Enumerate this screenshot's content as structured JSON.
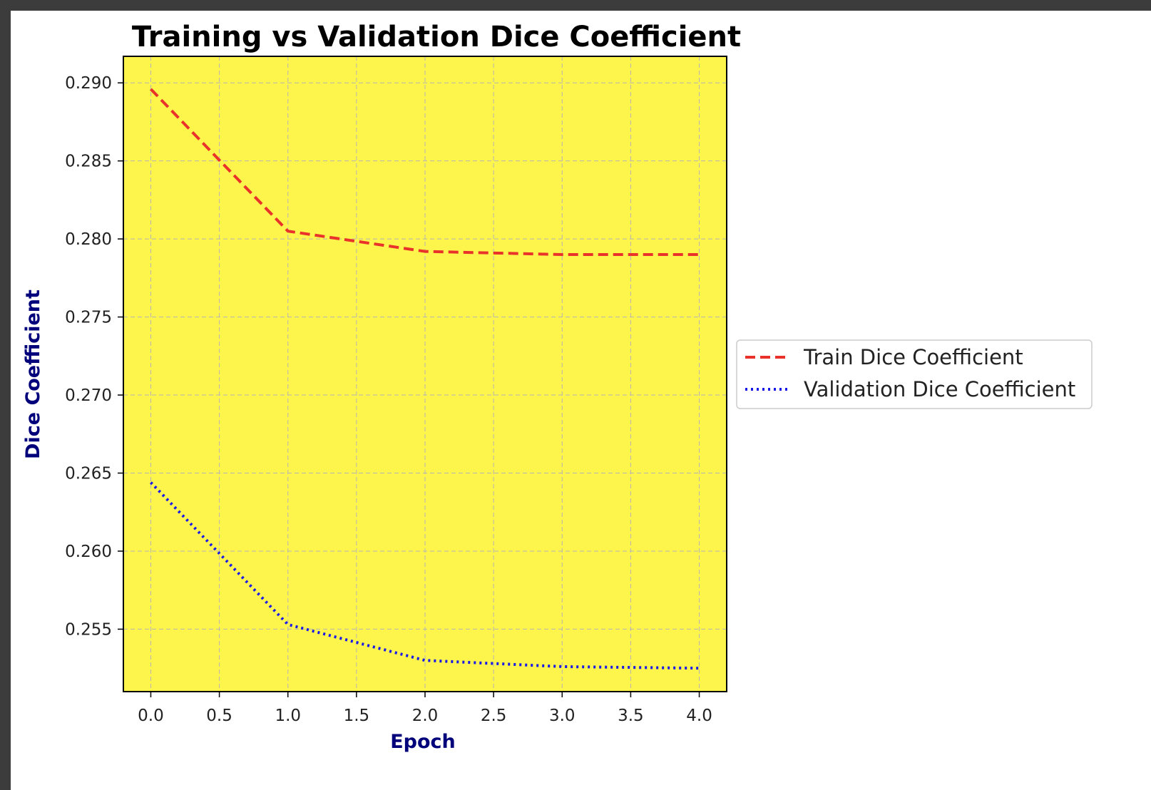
{
  "chart_data": {
    "type": "line",
    "title": "Training vs Validation Dice Coefficient",
    "xlabel": "Epoch",
    "ylabel": "Dice Coefficient",
    "x": [
      0,
      1,
      2,
      3,
      4
    ],
    "xlim": [
      -0.2,
      4.2
    ],
    "ylim": [
      0.251,
      0.2917
    ],
    "xticks": [
      0.0,
      0.5,
      1.0,
      1.5,
      2.0,
      2.5,
      3.0,
      3.5,
      4.0
    ],
    "xtick_labels": [
      "0.0",
      "0.5",
      "1.0",
      "1.5",
      "2.0",
      "2.5",
      "3.0",
      "3.5",
      "4.0"
    ],
    "yticks": [
      0.255,
      0.26,
      0.265,
      0.27,
      0.275,
      0.28,
      0.285,
      0.29
    ],
    "ytick_labels": [
      "0.255",
      "0.260",
      "0.265",
      "0.270",
      "0.275",
      "0.280",
      "0.285",
      "0.290"
    ],
    "grid": true,
    "legend_position": "center-right outside",
    "plot_background": "#fdf54b",
    "series": [
      {
        "name": "Train Dice Coefficient",
        "values": [
          0.2896,
          0.2805,
          0.2792,
          0.279,
          0.279
        ],
        "color": "#e8322a",
        "style": "dashed"
      },
      {
        "name": "Validation Dice Coefficient",
        "values": [
          0.2644,
          0.2553,
          0.253,
          0.2526,
          0.2525
        ],
        "color": "#1a1ae6",
        "style": "dotted"
      }
    ]
  }
}
